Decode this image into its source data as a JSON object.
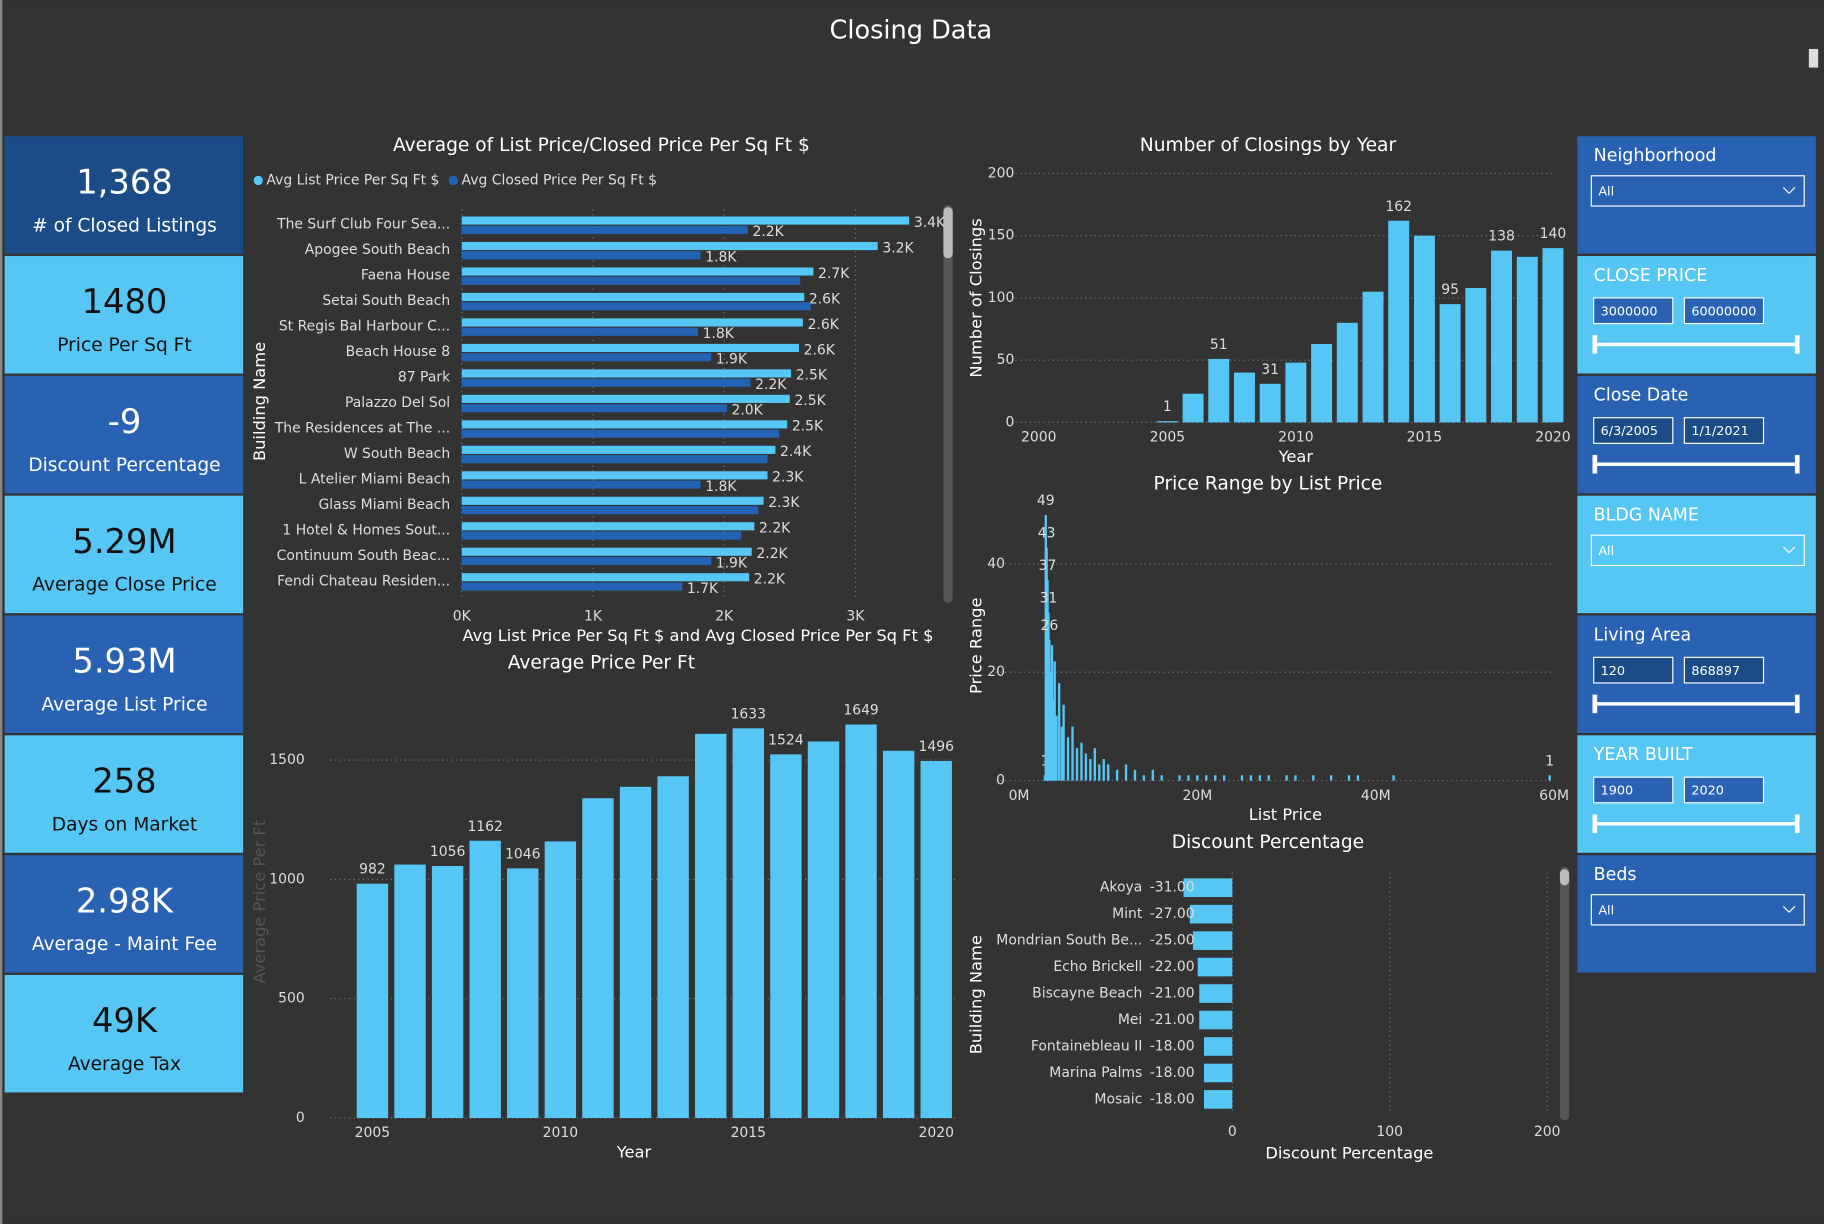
{
  "title": "Closing Data",
  "kpis": [
    {
      "value": "1,368",
      "label": "# of Closed Listings"
    },
    {
      "value": "1480",
      "label": "Price Per Sq Ft"
    },
    {
      "value": "-9",
      "label": "Discount Percentage"
    },
    {
      "value": "5.29M",
      "label": "Average Close Price"
    },
    {
      "value": "5.93M",
      "label": "Average List Price"
    },
    {
      "value": "258",
      "label": "Days on Market"
    },
    {
      "value": "2.98K",
      "label": "Average - Maint Fee"
    },
    {
      "value": "49K",
      "label": "Average Tax"
    }
  ],
  "filters": [
    {
      "label": "Neighborhood",
      "dropdown": "All"
    },
    {
      "label": "CLOSE PRICE",
      "from": "3000000",
      "to": "60000000"
    },
    {
      "label": "Close Date",
      "from": "6/3/2005",
      "to": "1/1/2021"
    },
    {
      "label": "BLDG NAME",
      "dropdown": "All"
    },
    {
      "label": "Living Area",
      "from": "120",
      "to": "868897"
    },
    {
      "label": "YEAR BUILT",
      "from": "1900",
      "to": "2020"
    },
    {
      "label": "Beds",
      "dropdown": "All"
    }
  ],
  "chart_data": [
    {
      "type": "bar",
      "orientation": "horizontal",
      "title": "Average of List Price/Closed Price Per Sq Ft $",
      "x_label": "Avg List Price Per Sq Ft $ and Avg Closed Price Per Sq Ft $",
      "y_label": "Building Name",
      "categories": [
        "The Surf Club Four Sea...",
        "Apogee South Beach",
        "Faena House",
        "Setai South Beach",
        "St Regis Bal Harbour C...",
        "Beach House 8",
        "87 Park",
        "Palazzo Del Sol",
        "The Residences at The ...",
        "W South Beach",
        "L Atelier Miami Beach",
        "Glass Miami Beach",
        "1 Hotel & Homes Sout...",
        "Continuum South Beac...",
        "Fendi Chateau Residen..."
      ],
      "series": [
        {
          "name": "Avg List Price Per Sq Ft $",
          "color": "#56c6f5",
          "values": [
            3410,
            3170,
            2680,
            2610,
            2600,
            2570,
            2510,
            2500,
            2480,
            2390,
            2330,
            2300,
            2230,
            2210,
            2190
          ],
          "value_labels": [
            "3.4K",
            "3.2K",
            "2.7K",
            "2.6K",
            "2.6K",
            "2.6K",
            "2.5K",
            "2.5K",
            "2.5K",
            "2.4K",
            "2.3K",
            "2.3K",
            "2.2K",
            "2.2K",
            "2.2K"
          ]
        },
        {
          "name": "Avg Closed Price Per Sq Ft $",
          "color": "#2462b3",
          "values": [
            2180,
            1820,
            2580,
            2660,
            1800,
            1900,
            2200,
            2020,
            2420,
            2330,
            1820,
            2260,
            2130,
            1900,
            1680
          ],
          "value_labels": [
            "2.2K",
            "1.8K",
            null,
            null,
            "1.8K",
            "1.9K",
            "2.2K",
            "2.0K",
            null,
            null,
            "1.8K",
            null,
            null,
            "1.9K",
            "1.7K"
          ]
        }
      ],
      "xlim": [
        0,
        3600
      ],
      "xticks": [
        {
          "value": 0,
          "label": "0K"
        },
        {
          "value": 1000,
          "label": "1K"
        },
        {
          "value": 2000,
          "label": "2K"
        },
        {
          "value": 3000,
          "label": "3K"
        }
      ],
      "grid": true,
      "legend": "top-left"
    },
    {
      "type": "bar",
      "title": "Number of Closings by Year",
      "x_label": "Year",
      "y_label": "Number of Closings",
      "color": "#56c6f5",
      "x": [
        2005,
        2006,
        2007,
        2008,
        2009,
        2010,
        2011,
        2012,
        2013,
        2014,
        2015,
        2016,
        2017,
        2018,
        2019,
        2020
      ],
      "values": [
        1,
        23,
        51,
        40,
        31,
        48,
        63,
        80,
        105,
        162,
        150,
        95,
        108,
        138,
        133,
        140
      ],
      "value_labels": [
        "1",
        null,
        "51",
        null,
        "31",
        null,
        null,
        null,
        null,
        "162",
        null,
        "95",
        null,
        "138",
        null,
        "140"
      ],
      "xlim": [
        2000,
        2020
      ],
      "xticks": [
        2000,
        2005,
        2010,
        2015,
        2020
      ],
      "ylim": [
        0,
        200
      ],
      "yticks": [
        0,
        50,
        100,
        150,
        200
      ],
      "grid": true
    },
    {
      "type": "bar",
      "title": "Price Range by List Price",
      "x_label": "List Price",
      "y_label": "Price Range",
      "color": "#56c6f5",
      "x": [
        2900000,
        3000000,
        3100000,
        3200000,
        3300000,
        3400000,
        3500000,
        3700000,
        3900000,
        4000000,
        4200000,
        4500000,
        4800000,
        5000000,
        5500000,
        6000000,
        6500000,
        7000000,
        7500000,
        8000000,
        8500000,
        9000000,
        9500000,
        10000000,
        11000000,
        12000000,
        13000000,
        14000000,
        15000000,
        16000000,
        18000000,
        19000000,
        20000000,
        21000000,
        22000000,
        23000000,
        25000000,
        26000000,
        27000000,
        28000000,
        30000000,
        31000000,
        33000000,
        35000000,
        37000000,
        38000000,
        42000000,
        59500000
      ],
      "values": [
        1,
        49,
        43,
        37,
        31,
        26,
        20,
        25,
        15,
        22,
        12,
        18,
        10,
        14,
        8,
        10,
        6,
        7,
        5,
        4,
        6,
        3,
        4,
        3,
        2,
        3,
        2,
        1,
        2,
        1,
        1,
        1,
        1,
        1,
        1,
        1,
        1,
        1,
        1,
        1,
        1,
        1,
        1,
        1,
        1,
        1,
        1,
        1
      ],
      "value_labels": [
        "1",
        "49",
        "43",
        "37",
        "31",
        "26",
        null,
        null,
        null,
        null,
        null,
        null,
        null,
        null,
        null,
        null,
        null,
        null,
        null,
        null,
        null,
        null,
        null,
        null,
        null,
        null,
        null,
        null,
        null,
        null,
        null,
        null,
        null,
        null,
        null,
        null,
        null,
        null,
        null,
        null,
        null,
        null,
        null,
        null,
        null,
        null,
        null,
        "1"
      ],
      "xlim": [
        0,
        60000000
      ],
      "xticks": [
        {
          "value": 0,
          "label": "0M"
        },
        {
          "value": 20000000,
          "label": "20M"
        },
        {
          "value": 40000000,
          "label": "40M"
        },
        {
          "value": 60000000,
          "label": "60M"
        }
      ],
      "ylim": [
        0,
        50
      ],
      "yticks": [
        0,
        20,
        40
      ],
      "grid": true
    },
    {
      "type": "bar",
      "title": "Average Price Per Ft",
      "x_label": "Year",
      "y_label": "Average Price Per Ft",
      "color": "#56c6f5",
      "x": [
        2005,
        2006,
        2007,
        2008,
        2009,
        2010,
        2011,
        2012,
        2013,
        2014,
        2015,
        2016,
        2017,
        2018,
        2019,
        2020
      ],
      "values": [
        982,
        1062,
        1056,
        1162,
        1046,
        1159,
        1340,
        1388,
        1432,
        1610,
        1633,
        1524,
        1578,
        1649,
        1539,
        1496
      ],
      "value_labels": [
        "982",
        null,
        "1056",
        "1162",
        "1046",
        null,
        null,
        null,
        null,
        null,
        "1633",
        "1524",
        null,
        "1649",
        null,
        "1496"
      ],
      "xlim": [
        2004.5,
        2020.5
      ],
      "xticks": [
        2005,
        2010,
        2015,
        2020
      ],
      "ylim": [
        0,
        1750
      ],
      "yticks": [
        0,
        500,
        1000,
        1500
      ],
      "grid": true
    },
    {
      "type": "bar",
      "orientation": "horizontal",
      "title": "Discount Percentage",
      "x_label": "Discount Percentage",
      "y_label": "Building Name",
      "color": "#56c6f5",
      "categories": [
        "Akoya",
        "Mint",
        "Mondrian South Be...",
        "Echo Brickell",
        "Biscayne Beach",
        "Mei",
        "Fontainebleau II",
        "Marina Palms",
        "Mosaic"
      ],
      "values": [
        -31,
        -27,
        -25,
        -22,
        -21,
        -21,
        -18,
        -18,
        -18
      ],
      "value_labels": [
        "-31.00",
        "-27.00",
        "-25.00",
        "-22.00",
        "-21.00",
        "-21.00",
        "-18.00",
        "-18.00",
        "-18.00"
      ],
      "xlim": [
        -35,
        200
      ],
      "xticks": [
        0,
        100,
        200
      ],
      "grid": true
    }
  ]
}
